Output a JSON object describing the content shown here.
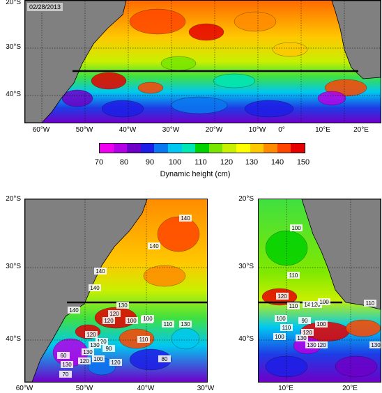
{
  "date_label": "02/28/2013",
  "colorbar": {
    "title": "Dynamic height (cm)",
    "ticks": [
      "70",
      "80",
      "90",
      "100",
      "110",
      "120",
      "130",
      "140",
      "150"
    ],
    "colors": [
      "#f000f0",
      "#b400e6",
      "#6e00c8",
      "#1e1ee6",
      "#0a78f0",
      "#00c8f0",
      "#00e6b4",
      "#00d200",
      "#78e600",
      "#c8f000",
      "#ffff00",
      "#ffc800",
      "#ff8c00",
      "#ff4600",
      "#e60000"
    ]
  },
  "map_colors": {
    "land": "#808080",
    "coast": "#000000",
    "section": "#000000"
  },
  "top_map": {
    "y_labels": [
      "20°S",
      "30°S",
      "40°S"
    ],
    "x_labels": [
      "60°W",
      "50°W",
      "40°W",
      "30°W",
      "20°W",
      "10°W",
      "0°",
      "10°E",
      "20°E"
    ]
  },
  "bottom_left_map": {
    "y_labels": [
      "20°S",
      "30°S",
      "40°S"
    ],
    "x_labels": [
      "60°W",
      "50°W",
      "40°W",
      "30°W"
    ],
    "contour_labels": [
      "140",
      "140",
      "140",
      "140",
      "140",
      "130",
      "120",
      "100",
      "120",
      "100",
      "100",
      "110",
      "130",
      "110",
      "120",
      "120",
      "90",
      "130",
      "100",
      "60",
      "120",
      "80",
      "130",
      "70",
      "120",
      "130"
    ]
  },
  "bottom_right_map": {
    "y_labels": [
      "20°S",
      "30°S",
      "40°S"
    ],
    "x_labels": [
      "10°E",
      "20°E"
    ],
    "contour_labels": [
      "100",
      "110",
      "120",
      "110",
      "140",
      "120",
      "100",
      "100",
      "90",
      "100",
      "110",
      "120",
      "100",
      "130",
      "120",
      "130",
      "130",
      "110"
    ]
  }
}
